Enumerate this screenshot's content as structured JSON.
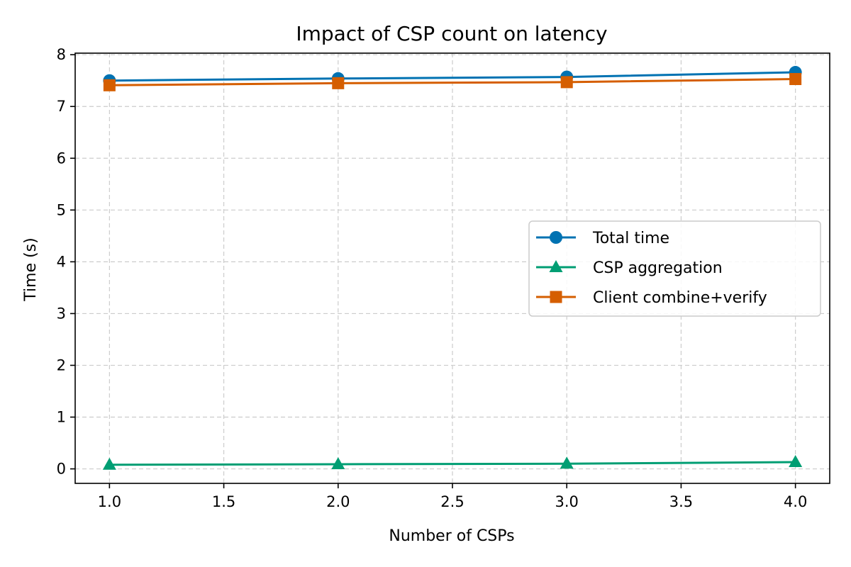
{
  "chart_data": {
    "type": "line",
    "title": "Impact of CSP count on latency",
    "xlabel": "Number of CSPs",
    "ylabel": "Time (s)",
    "xlim": [
      0.85,
      4.15
    ],
    "ylim": [
      -0.28,
      8.03
    ],
    "xticks": [
      1.0,
      1.5,
      2.0,
      2.5,
      3.0,
      3.5,
      4.0
    ],
    "xtick_labels": [
      "1.0",
      "1.5",
      "2.0",
      "2.5",
      "3.0",
      "3.5",
      "4.0"
    ],
    "yticks": [
      0,
      1,
      2,
      3,
      4,
      5,
      6,
      7,
      8
    ],
    "ytick_labels": [
      "0",
      "1",
      "2",
      "3",
      "4",
      "5",
      "6",
      "7",
      "8"
    ],
    "grid": true,
    "legend_position": "center-right",
    "series": [
      {
        "name": "Total time",
        "marker": "circle",
        "color": "#0072B2",
        "x": [
          1,
          2,
          3,
          4
        ],
        "y": [
          7.5,
          7.54,
          7.57,
          7.66
        ]
      },
      {
        "name": "CSP aggregation",
        "marker": "triangle",
        "color": "#009E73",
        "x": [
          1,
          2,
          3,
          4
        ],
        "y": [
          0.08,
          0.09,
          0.1,
          0.13
        ]
      },
      {
        "name": "Client combine+verify",
        "marker": "square",
        "color": "#D55E00",
        "x": [
          1,
          2,
          3,
          4
        ],
        "y": [
          7.41,
          7.45,
          7.47,
          7.53
        ]
      }
    ]
  }
}
